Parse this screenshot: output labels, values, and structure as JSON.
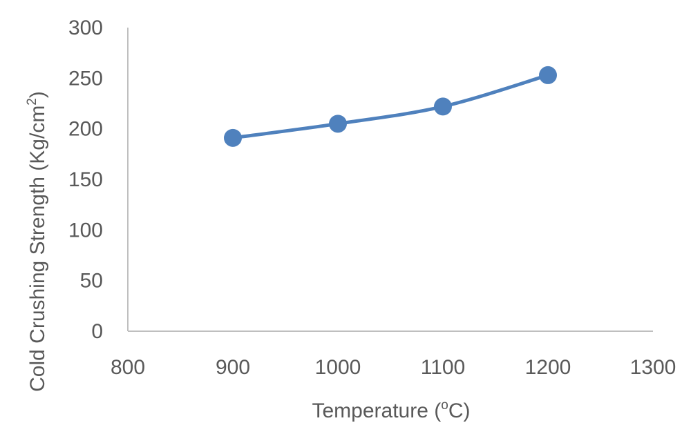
{
  "chart_data": {
    "type": "line",
    "title": "",
    "xlabel": {
      "pre": "Temperature (",
      "sup": "o",
      "post": "C)"
    },
    "ylabel": {
      "pre": "Cold Crushing Strength (Kg/cm",
      "sup": "2",
      "post": ")"
    },
    "xlim": [
      800,
      1300
    ],
    "ylim": [
      0,
      300
    ],
    "x_ticks": [
      "800",
      "900",
      "1000",
      "1100",
      "1200",
      "1300"
    ],
    "y_ticks": [
      "0",
      "50",
      "100",
      "150",
      "200",
      "250",
      "300"
    ],
    "series": [
      {
        "color": "#4f81bd",
        "points": [
          {
            "x": 900,
            "y": 191
          },
          {
            "x": 1000,
            "y": 205
          },
          {
            "x": 1100,
            "y": 222
          },
          {
            "x": 1200,
            "y": 253
          }
        ]
      }
    ],
    "grid": false,
    "smooth": true
  }
}
